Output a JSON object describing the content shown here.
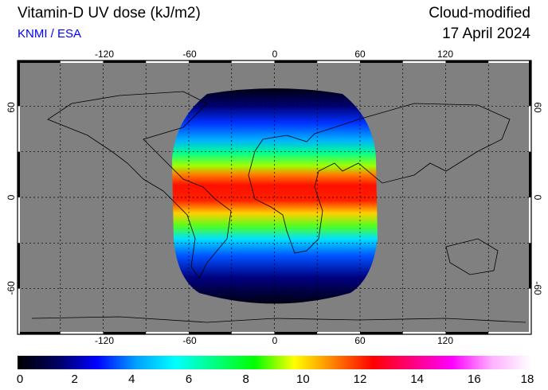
{
  "header": {
    "title": "Vitamin-D UV dose (kJ/m2)",
    "credit": "KNMI / ESA",
    "mode": "Cloud-modified",
    "date": "17 April 2024"
  },
  "map": {
    "projection": "equirectangular",
    "lon_range": [
      -180,
      180
    ],
    "lat_range": [
      -90,
      90
    ],
    "lon_ticks": [
      "-120",
      "-60",
      "0",
      "60",
      "120"
    ],
    "lon_tick_values": [
      -120,
      -60,
      0,
      60,
      120
    ],
    "lat_ticks": [
      "60",
      "0",
      "-60"
    ],
    "lat_tick_values": [
      60,
      0,
      -60
    ],
    "grid_step_deg": 30,
    "background_color": "#808080",
    "coverage_lon": [
      -70,
      70
    ],
    "coverage_lat": [
      -75,
      75
    ]
  },
  "colorbar": {
    "min": 0,
    "max": 18,
    "labels": [
      "0",
      "2",
      "4",
      "6",
      "8",
      "10",
      "12",
      "14",
      "16",
      "18"
    ],
    "colors": [
      "#000000",
      "#000060",
      "#0000ff",
      "#00a0ff",
      "#00ffff",
      "#00ff80",
      "#00ff00",
      "#ffff00",
      "#ff8000",
      "#ff0000",
      "#ff0080",
      "#ff00ff",
      "#ffb0ff",
      "#ffffff"
    ]
  }
}
